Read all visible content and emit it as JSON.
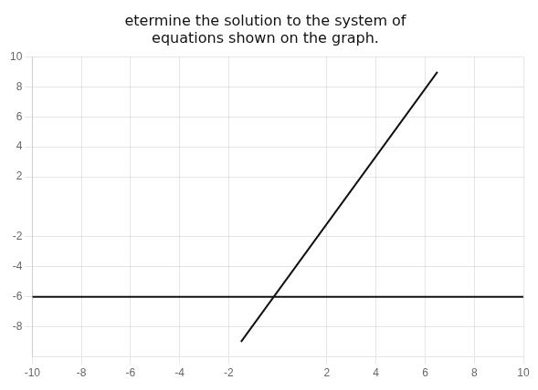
{
  "chart_data": {
    "type": "line",
    "title": [
      "etermine the solution to the system of",
      "equations shown on the graph."
    ],
    "series": [
      {
        "x": [
          -1.5,
          6.5
        ],
        "values": [
          -9,
          9
        ],
        "color": "#111111"
      },
      {
        "x": [
          -10,
          10
        ],
        "values": [
          -6,
          -6
        ],
        "color": "#111111"
      }
    ],
    "xlim": [
      -10,
      10
    ],
    "ylim": [
      -10,
      10
    ],
    "xticks": [
      -10,
      -8,
      -6,
      -4,
      -2,
      2,
      4,
      6,
      8,
      10
    ],
    "yticks": [
      -8,
      -6,
      -4,
      -2,
      2,
      4,
      6,
      8,
      10
    ],
    "grid": true
  }
}
